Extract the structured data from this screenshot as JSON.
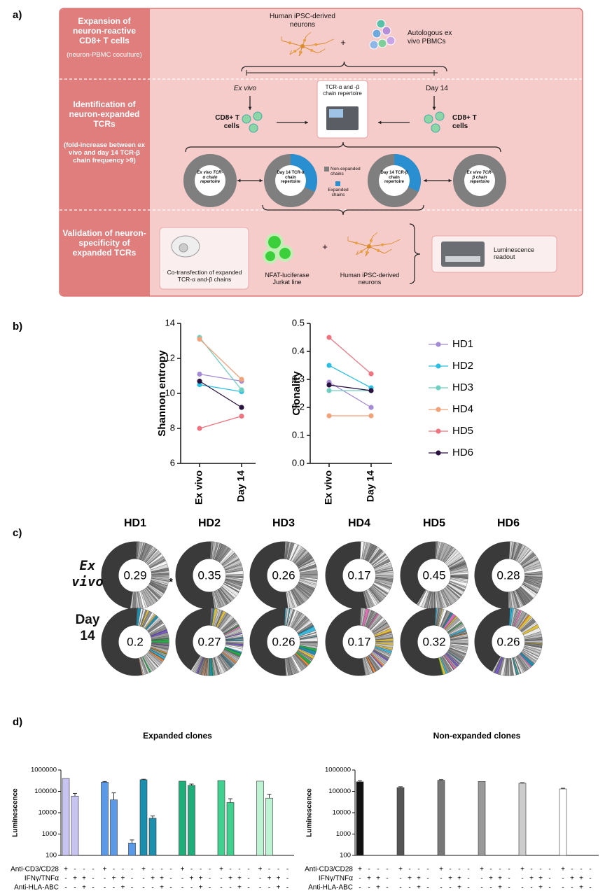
{
  "panel_labels": [
    "a)",
    "b)",
    "c)",
    "d)"
  ],
  "diagram": {
    "sections": [
      "Expansion of neuron-reactive CD8+ T cells",
      "Identification of neuron-expanded TCRs",
      "Validation of neuron-specificity of expanded TCRs"
    ],
    "section_notes": [
      "(neuron-PBMC coculture)",
      "(fold-increase between ex vivo and day 14 TCR-β chain frequency >9)"
    ],
    "neurons": "Human iPSC-derived neurons",
    "pbmcs": "Autologous ex vivo PBMCs",
    "plus": "+",
    "timepoints": [
      "Ex vivo",
      "Day 14"
    ],
    "cd8": "CD8+ T cells",
    "sequencing": "TCR-α and -β chain repertoire",
    "repertoires": [
      "Ex vivo TCR-α chain repertoire",
      "Day 14 TCR-α chain repertoire",
      "Day 14 TCR-β chain repertoire",
      "Ex vivo TCR-β chain repertoire"
    ],
    "legend": [
      "Non-expanded chains",
      "Expanded chains"
    ],
    "transfection": "Co-transfection of expanded TCR-α and-β chains",
    "jurkat": "NFAT-luciferase Jurkat line",
    "readout": "Luminescence readout"
  },
  "chart_data": [
    {
      "type": "line",
      "ylabel": "Shannon entropy",
      "categories": [
        "Ex vivo",
        "Day 14"
      ],
      "ylim": [
        6,
        14
      ],
      "yticks": [
        6,
        8,
        10,
        12,
        14
      ],
      "series": [
        {
          "name": "HD1",
          "color": "#a58bd6",
          "values": [
            11.1,
            10.7
          ]
        },
        {
          "name": "HD2",
          "color": "#2bbfe3",
          "values": [
            10.5,
            10.1
          ]
        },
        {
          "name": "HD3",
          "color": "#6fcfc0",
          "values": [
            13.2,
            10.2
          ]
        },
        {
          "name": "HD4",
          "color": "#f2a27a",
          "values": [
            13.1,
            10.8
          ]
        },
        {
          "name": "HD5",
          "color": "#ef7480",
          "values": [
            8.0,
            8.7
          ]
        },
        {
          "name": "HD6",
          "color": "#2a1240",
          "values": [
            10.7,
            9.2
          ]
        }
      ]
    },
    {
      "type": "line",
      "ylabel": "Clonality",
      "categories": [
        "Ex vivo",
        "Day 14"
      ],
      "ylim": [
        0,
        0.5
      ],
      "yticks": [
        {
          "value": 0,
          "label": "0.0"
        },
        0.1,
        0.2,
        0.3,
        0.4,
        0.5
      ],
      "series": [
        {
          "values": [
            0.29,
            0.2
          ]
        },
        {
          "values": [
            0.35,
            0.27
          ]
        },
        {
          "values": [
            0.26,
            0.26
          ]
        },
        {
          "values": [
            0.17,
            0.17
          ]
        },
        {
          "values": [
            0.45,
            0.32
          ]
        },
        {
          "values": [
            0.28,
            0.26
          ]
        }
      ]
    },
    {
      "type": "donut",
      "categories": [
        "HD1",
        "HD2",
        "HD3",
        "HD4",
        "HD5",
        "HD6"
      ],
      "rows": [
        {
          "name": "Ex vivo",
          "values": [
            0.29,
            0.35,
            0.26,
            0.17,
            0.45,
            0.28
          ]
        },
        {
          "name": "Day 14",
          "values": [
            0.2,
            0.27,
            0.26,
            0.17,
            0.32,
            0.26
          ]
        }
      ],
      "annotation": "*"
    },
    {
      "type": "bar",
      "title": "Expanded clones",
      "ylabel": "Luminescence",
      "log": true,
      "ylim": [
        100,
        1000000
      ],
      "yticks": [
        100,
        1000,
        10000,
        100000,
        1000000
      ],
      "groups": [
        {
          "color": "#c8c4f2",
          "values": [
            400000,
            60000,
            100,
            100
          ],
          "errors": [
            null,
            20000,
            null,
            null
          ]
        },
        {
          "color": "#5b9ae8",
          "values": [
            270000,
            40000,
            100,
            380
          ],
          "errors": [
            20000,
            45000,
            null,
            150
          ]
        },
        {
          "color": "#1c8fae",
          "values": [
            350000,
            5500,
            100,
            100
          ],
          "errors": [
            20000,
            1500,
            null,
            null
          ]
        },
        {
          "color": "#1fae79",
          "values": [
            300000,
            190000,
            100,
            100
          ],
          "errors": [
            null,
            30000,
            null,
            null
          ]
        },
        {
          "color": "#40d191",
          "values": [
            320000,
            30000,
            100,
            100
          ],
          "errors": [
            null,
            15000,
            null,
            null
          ]
        },
        {
          "color": "#bdf2d3",
          "values": [
            300000,
            48000,
            100,
            100
          ],
          "errors": [
            null,
            25000,
            null,
            null
          ]
        }
      ],
      "conditions": [
        {
          "name": "Anti-CD3/CD28",
          "signs": [
            "+",
            "-",
            "-",
            "-"
          ]
        },
        {
          "name": "IFNγ/TNFα",
          "signs": [
            "-",
            "+",
            "+",
            "-"
          ]
        },
        {
          "name": "Anti-HLA-ABC",
          "signs": [
            "-",
            "-",
            "+",
            "-"
          ]
        }
      ]
    },
    {
      "type": "bar",
      "title": "Non-expanded clones",
      "ylabel": "Luminescence",
      "log": true,
      "ylim": [
        100,
        1000000
      ],
      "yticks": [
        100,
        1000,
        10000,
        100000,
        1000000
      ],
      "groups": [
        {
          "color": "#111111",
          "values": [
            280000,
            100,
            100,
            100
          ],
          "errors": [
            30000,
            null,
            null,
            null
          ]
        },
        {
          "color": "#555555",
          "values": [
            150000,
            100,
            100,
            100
          ],
          "errors": [
            15000,
            null,
            null,
            null
          ]
        },
        {
          "color": "#777777",
          "values": [
            330000,
            100,
            100,
            100
          ],
          "errors": [
            25000,
            null,
            null,
            null
          ]
        },
        {
          "color": "#999999",
          "values": [
            290000,
            100,
            100,
            100
          ],
          "errors": [
            null,
            null,
            null,
            null
          ]
        },
        {
          "color": "#cccccc",
          "values": [
            240000,
            100,
            100,
            100
          ],
          "errors": [
            15000,
            null,
            null,
            null
          ]
        },
        {
          "color": "#ffffff",
          "values": [
            130000,
            100,
            100,
            100
          ],
          "errors": [
            10000,
            null,
            null,
            null
          ]
        }
      ],
      "conditions": [
        {
          "name": "Anti-CD3/CD28",
          "signs": [
            "+",
            "-",
            "-",
            "-"
          ]
        },
        {
          "name": "IFNγ/TNFα",
          "signs": [
            "-",
            "+",
            "+",
            "-"
          ]
        },
        {
          "name": "Anti-HLA-ABC",
          "signs": [
            "-",
            "-",
            "+",
            "-"
          ]
        }
      ]
    }
  ]
}
